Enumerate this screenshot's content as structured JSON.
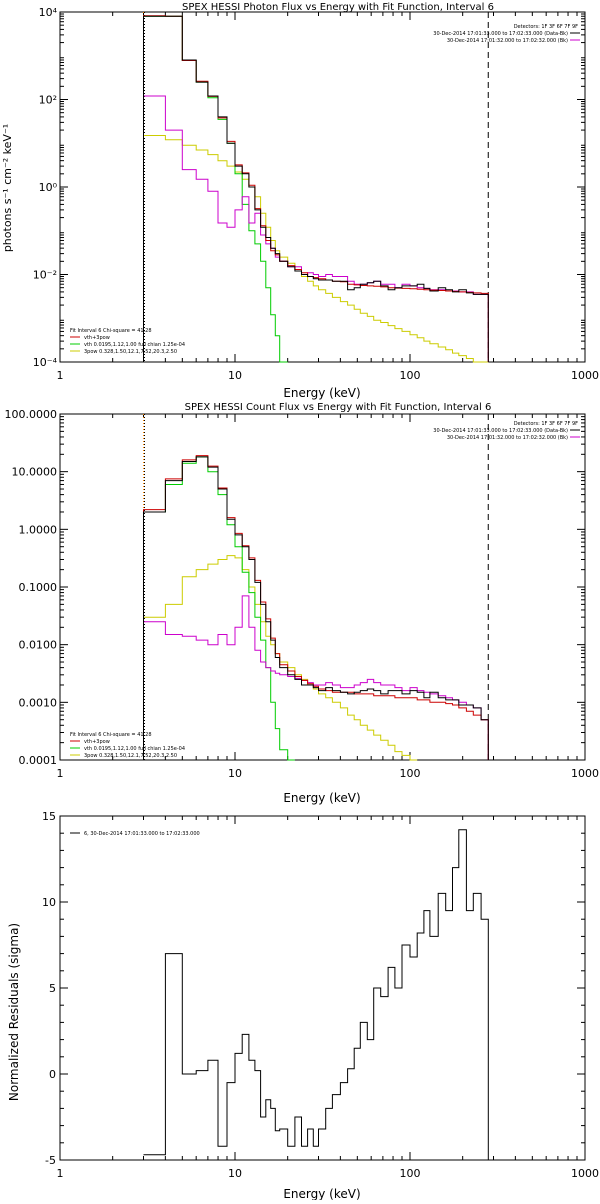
{
  "colors": {
    "data": "#000000",
    "total": "#cc0000",
    "thermal": "#00cc00",
    "powerlaw": "#cccc00",
    "background": "#cc00cc",
    "marker_orange": "#ff8800"
  },
  "chart_data": [
    {
      "type": "line",
      "title": "SPEX HESSI Photon Flux vs Energy with Fit Function, Interval 6",
      "xlabel": "Energy (keV)",
      "ylabel": "photons s⁻¹ cm⁻² keV⁻¹",
      "xscale": "log",
      "yscale": "log",
      "xlim": [
        1,
        1000
      ],
      "ylim": [
        0.0001,
        10000
      ],
      "x_ticks": [
        "1",
        "10",
        "100",
        "1000"
      ],
      "y_ticks": [
        "10⁻⁴",
        "10⁻²",
        "10⁰",
        "10²",
        "10⁴"
      ],
      "legend_top": [
        "Detectors: 1F 3F 6F 7F 9F",
        "30-Dec-2014 17:01:33.000 to 17:02:33.000 (Data-Bk)",
        "30-Dec-2014 17:01:32.000 to 17:02:32.000 (Bk)"
      ],
      "legend_bottom": [
        "Fit Interval 6   Chi-square = 41.28",
        "vth+3pow",
        "vth 0.0195,1.12,1.00  full chian 1.25e-04",
        "3pow 0.328,1.50,12.1,7.52,20.3,2.50"
      ],
      "vlines": [
        3,
        280
      ],
      "x_edges": [
        3,
        4,
        5,
        6,
        7,
        8,
        9,
        10,
        11,
        12,
        13,
        14,
        15,
        16,
        17,
        18,
        20,
        22,
        24,
        26,
        28,
        30,
        33,
        36,
        40,
        44,
        48,
        52,
        57,
        62,
        68,
        75,
        82,
        90,
        100,
        110,
        120,
        130,
        145,
        160,
        175,
        190,
        210,
        230,
        255,
        280
      ],
      "series": [
        {
          "role": "data",
          "values": [
            8000,
            8000,
            800,
            250,
            120,
            40,
            10,
            3,
            2,
            1,
            0.3,
            0.12,
            0.07,
            0.04,
            0.03,
            0.02,
            0.015,
            0.012,
            0.01,
            0.009,
            0.008,
            0.0075,
            0.0075,
            0.007,
            0.007,
            0.0045,
            0.005,
            0.006,
            0.0065,
            0.007,
            0.0055,
            0.0045,
            0.005,
            0.0055,
            0.0055,
            0.006,
            0.0048,
            0.0042,
            0.005,
            0.0045,
            0.004,
            0.0045,
            0.0038,
            0.0035,
            0.0035
          ]
        },
        {
          "role": "total",
          "values": [
            8200,
            8000,
            780,
            260,
            118,
            38,
            11,
            3.2,
            2.1,
            1.1,
            0.32,
            0.13,
            0.06,
            0.035,
            0.028,
            0.02,
            0.016,
            0.013,
            0.011,
            0.009,
            0.0085,
            0.008,
            0.0075,
            0.007,
            0.0068,
            0.006,
            0.0058,
            0.0056,
            0.0055,
            0.0054,
            0.0052,
            0.005,
            0.0049,
            0.0048,
            0.0047,
            0.0046,
            0.0045,
            0.0044,
            0.0043,
            0.0042,
            0.0041,
            0.004,
            0.0039,
            0.0038,
            0.0037
          ]
        },
        {
          "role": "thermal",
          "values": [
            8000,
            8000,
            780,
            250,
            110,
            35,
            10,
            2,
            0.4,
            0.1,
            0.05,
            0.02,
            0.005,
            0.0012,
            0.0004,
            5e-05
          ]
        },
        {
          "role": "powerlaw",
          "values": [
            15,
            12,
            9,
            7,
            5.5,
            4,
            3,
            2.2,
            1.5,
            1,
            0.6,
            0.25,
            0.12,
            0.06,
            0.035,
            0.025,
            0.018,
            0.013,
            0.009,
            0.007,
            0.0055,
            0.0045,
            0.0037,
            0.003,
            0.0024,
            0.002,
            0.0016,
            0.0013,
            0.0011,
            0.0009,
            0.0008,
            0.00068,
            0.00058,
            0.0005,
            0.00042,
            0.00036,
            0.0003,
            0.00026,
            0.00022,
            0.00019,
            0.00016,
            0.00014,
            0.00012,
            0.0001,
            9e-05
          ]
        },
        {
          "role": "background",
          "values": [
            120,
            20,
            2.5,
            1.5,
            0.8,
            0.15,
            0.12,
            0.3,
            0.6,
            0.15,
            0.25,
            0.08,
            0.05,
            0.04,
            0.025,
            0.02,
            0.015,
            0.015,
            0.01,
            0.011,
            0.01,
            0.009,
            0.01,
            0.009,
            0.009,
            0.007,
            0.006,
            0.006,
            0.0065,
            0.007,
            0.006,
            0.006,
            0.005,
            0.006,
            0.0055,
            0.005,
            0.0048,
            0.0045,
            0.0045,
            0.0042,
            0.0042,
            0.004,
            0.004,
            0.0035,
            0.0035
          ]
        }
      ]
    },
    {
      "type": "line",
      "title": "SPEX HESSI Count Flux vs Energy with Fit Function, Interval 6",
      "xlabel": "Energy (keV)",
      "ylabel": "",
      "xscale": "log",
      "yscale": "log",
      "xlim": [
        1,
        1000
      ],
      "ylim": [
        0.0001,
        100
      ],
      "x_ticks": [
        "1",
        "10",
        "100",
        "1000"
      ],
      "y_ticks": [
        "0.0001",
        "0.0010",
        "0.0100",
        "0.1000",
        "1.0000",
        "10.0000",
        "100.0000"
      ],
      "legend_top": [
        "Detectors: 1F 3F 6F 7F 9F",
        "30-Dec-2014 17:01:33.000 to 17:02:33.000 (Data-Bk)",
        "30-Dec-2014 17:01:32.000 to 17:02:32.000 (Bk)"
      ],
      "legend_bottom": [
        "Fit Interval 6   Chi-square = 41.28",
        "vth+3pow",
        "vth 0.0195,1.12,1.00  full chian 1.25e-04",
        "3pow 0.328,1.50,12.1,7.52,20.3,2.50"
      ],
      "vlines": [
        3,
        280
      ],
      "x_edges": [
        3,
        4,
        5,
        6,
        7,
        8,
        9,
        10,
        11,
        12,
        13,
        14,
        15,
        16,
        17,
        18,
        20,
        22,
        24,
        26,
        28,
        30,
        33,
        36,
        40,
        44,
        48,
        52,
        57,
        62,
        68,
        75,
        82,
        90,
        100,
        110,
        120,
        130,
        145,
        160,
        175,
        190,
        210,
        230,
        255,
        280
      ],
      "series": [
        {
          "role": "data",
          "values": [
            2,
            7,
            15,
            18,
            12,
            5,
            1.5,
            0.8,
            0.5,
            0.3,
            0.12,
            0.05,
            0.025,
            0.012,
            0.006,
            0.004,
            0.003,
            0.0025,
            0.002,
            0.002,
            0.0018,
            0.0016,
            0.0018,
            0.0016,
            0.0015,
            0.0014,
            0.0015,
            0.0016,
            0.0017,
            0.0016,
            0.0014,
            0.0016,
            0.0016,
            0.0014,
            0.0016,
            0.0015,
            0.0012,
            0.0015,
            0.0012,
            0.0011,
            0.0011,
            0.0009,
            0.0009,
            0.0008,
            0.0005
          ]
        },
        {
          "role": "total",
          "values": [
            2.2,
            7.5,
            16,
            19,
            12.5,
            5.2,
            1.6,
            0.85,
            0.52,
            0.32,
            0.13,
            0.055,
            0.028,
            0.013,
            0.007,
            0.0045,
            0.0035,
            0.0028,
            0.0024,
            0.0021,
            0.0019,
            0.0017,
            0.0016,
            0.0015,
            0.0015,
            0.0015,
            0.0014,
            0.0014,
            0.0014,
            0.0013,
            0.0013,
            0.0013,
            0.0012,
            0.0012,
            0.0012,
            0.0011,
            0.0011,
            0.001,
            0.001,
            0.00095,
            0.0009,
            0.0008,
            0.0007,
            0.0006,
            0.0005
          ]
        },
        {
          "role": "thermal",
          "values": [
            2,
            6,
            14,
            18,
            10,
            4,
            1.2,
            0.5,
            0.18,
            0.08,
            0.03,
            0.012,
            0.004,
            0.001,
            0.00035,
            0.00015,
            5e-05
          ]
        },
        {
          "role": "powerlaw",
          "values": [
            0.03,
            0.05,
            0.15,
            0.2,
            0.25,
            0.3,
            0.35,
            0.32,
            0.2,
            0.1,
            0.05,
            0.025,
            0.014,
            0.01,
            0.007,
            0.005,
            0.004,
            0.003,
            0.0025,
            0.002,
            0.0017,
            0.0014,
            0.0012,
            0.001,
            0.0008,
            0.0006,
            0.0005,
            0.0004,
            0.00033,
            0.00027,
            0.00022,
            0.00018,
            0.00014,
            0.00012,
            0.0001
          ]
        },
        {
          "role": "background",
          "values": [
            0.025,
            0.015,
            0.014,
            0.012,
            0.01,
            0.015,
            0.01,
            0.02,
            0.07,
            0.02,
            0.008,
            0.005,
            0.004,
            0.0035,
            0.0032,
            0.003,
            0.0028,
            0.0026,
            0.0024,
            0.0022,
            0.002,
            0.002,
            0.0022,
            0.002,
            0.0018,
            0.0018,
            0.002,
            0.0022,
            0.0025,
            0.0022,
            0.002,
            0.002,
            0.0018,
            0.0016,
            0.0018,
            0.0016,
            0.0015,
            0.0014,
            0.0013,
            0.0012,
            0.0011,
            0.001,
            0.0009,
            0.0008,
            0.0005
          ]
        }
      ]
    },
    {
      "type": "line",
      "title": "",
      "xlabel": "Energy (keV)",
      "ylabel": "Normalized Residuals (sigma)",
      "xscale": "log",
      "yscale": "linear",
      "xlim": [
        1,
        1000
      ],
      "ylim": [
        -5,
        15
      ],
      "x_ticks": [
        "1",
        "10",
        "100",
        "1000"
      ],
      "y_ticks": [
        "-5",
        "0",
        "5",
        "10",
        "15"
      ],
      "legend": "6, 30-Dec-2014 17:01:33.000 to 17:02:33.000",
      "x_edges": [
        3,
        4,
        5,
        6,
        7,
        8,
        9,
        10,
        11,
        12,
        13,
        14,
        15,
        16,
        17,
        18,
        20,
        22,
        24,
        26,
        28,
        30,
        33,
        36,
        40,
        44,
        48,
        52,
        57,
        62,
        68,
        75,
        82,
        90,
        100,
        110,
        120,
        130,
        145,
        160,
        175,
        190,
        210,
        230,
        255,
        280
      ],
      "series": [
        {
          "role": "residuals",
          "values": [
            -4.7,
            7,
            0,
            0.2,
            0.8,
            -4.2,
            -0.5,
            1.2,
            2.3,
            0.8,
            0.2,
            -2.5,
            -1.5,
            -2,
            -3.3,
            -3.2,
            -4.2,
            -2.5,
            -4.2,
            -3.2,
            -4.2,
            -3.2,
            -2,
            -1.2,
            -0.5,
            0.3,
            1.5,
            3,
            2,
            5,
            4.5,
            6.2,
            5,
            7.5,
            6.8,
            8.2,
            9.5,
            8,
            10.5,
            9.5,
            12,
            14.2,
            9.5,
            10.5,
            9
          ]
        }
      ]
    }
  ]
}
